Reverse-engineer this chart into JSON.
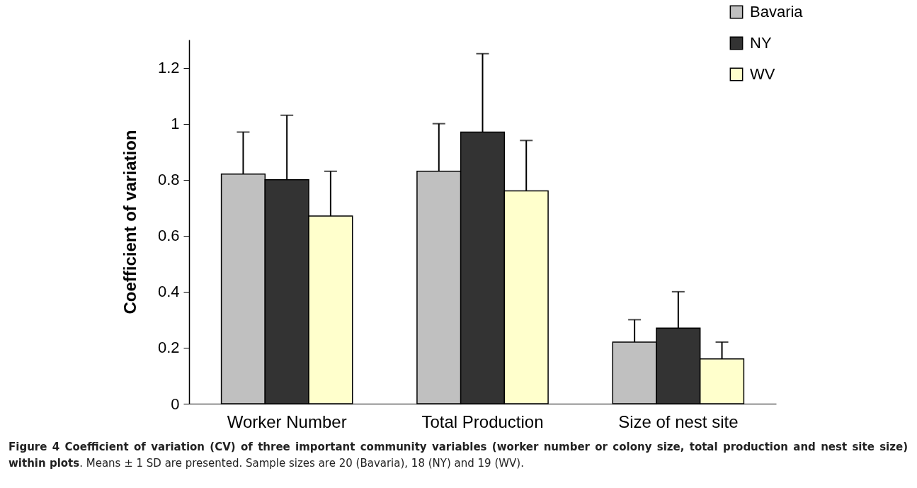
{
  "chart_data": {
    "type": "bar",
    "title": "Figure 4 Coefficient of variation (CV) of three important community variables (worker number or colony size, total production and nest site size) within plots",
    "ylabel": "Coefficient of variation",
    "categories": [
      "Worker Number",
      "Total Production",
      "Size of nest site"
    ],
    "series": [
      {
        "name": "Bavaria",
        "color": "#c0c0c0",
        "values": [
          0.82,
          0.83,
          0.22
        ],
        "errors": [
          [
            0.82,
            0.97
          ],
          [
            0.83,
            1.0
          ],
          [
            0.22,
            0.3
          ]
        ]
      },
      {
        "name": "NY",
        "color": "#333333",
        "values": [
          0.8,
          0.97,
          0.27
        ],
        "errors": [
          [
            0.8,
            1.03
          ],
          [
            0.97,
            1.25
          ],
          [
            0.27,
            0.4
          ]
        ]
      },
      {
        "name": "WV",
        "color": "#ffffcc",
        "values": [
          0.67,
          0.76,
          0.16
        ],
        "errors": [
          [
            0.67,
            0.83
          ],
          [
            0.76,
            0.94
          ],
          [
            0.16,
            0.22
          ]
        ]
      }
    ],
    "ylim": [
      0,
      1.3
    ],
    "yticks": [
      0,
      0.2,
      0.4,
      0.6,
      0.8,
      1,
      1.2
    ],
    "grid": false,
    "legend": "top right",
    "annotations": [
      ". Means ± 1 SD are presented. Sample sizes are 20 (Bavaria), 18 (NY) and 19 (WV)."
    ]
  }
}
